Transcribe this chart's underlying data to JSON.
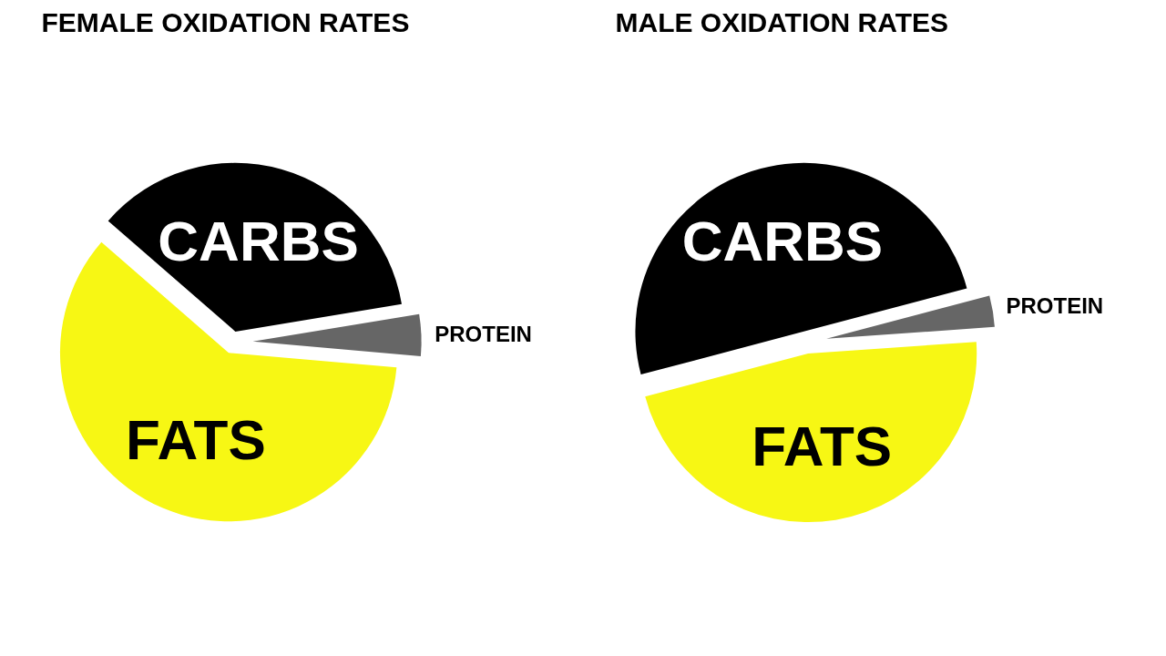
{
  "chart_data": [
    {
      "type": "pie",
      "title": "FEMALE OXIDATION RATES",
      "categories": [
        "FATS",
        "CARBS",
        "PROTEIN"
      ],
      "values": [
        60,
        36,
        4
      ],
      "colors": [
        "#f7f714",
        "#000000",
        "#666666"
      ]
    },
    {
      "type": "pie",
      "title": "MALE OXIDATION RATES",
      "categories": [
        "FATS",
        "CARBS",
        "PROTEIN"
      ],
      "values": [
        47,
        50,
        3
      ],
      "colors": [
        "#f7f714",
        "#000000",
        "#666666"
      ]
    }
  ]
}
